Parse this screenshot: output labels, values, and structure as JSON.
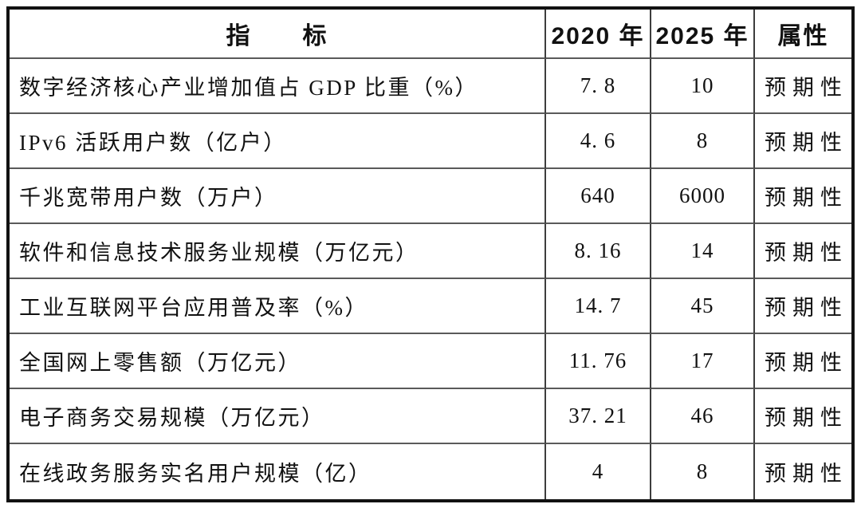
{
  "table": {
    "header": {
      "indicator": "指　　标",
      "y2020": "2020 年",
      "y2025": "2025 年",
      "attribute": "属性"
    },
    "rows": [
      {
        "indicator": "数字经济核心产业增加值占 GDP 比重（%）",
        "y2020": "7. 8",
        "y2025": "10",
        "attribute": "预期性"
      },
      {
        "indicator": "IPv6 活跃用户数（亿户）",
        "y2020": "4. 6",
        "y2025": "8",
        "attribute": "预期性"
      },
      {
        "indicator": "千兆宽带用户数（万户）",
        "y2020": "640",
        "y2025": "6000",
        "attribute": "预期性"
      },
      {
        "indicator": "软件和信息技术服务业规模（万亿元）",
        "y2020": "8. 16",
        "y2025": "14",
        "attribute": "预期性"
      },
      {
        "indicator": "工业互联网平台应用普及率（%）",
        "y2020": "14. 7",
        "y2025": "45",
        "attribute": "预期性"
      },
      {
        "indicator": "全国网上零售额（万亿元）",
        "y2020": "11. 76",
        "y2025": "17",
        "attribute": "预期性"
      },
      {
        "indicator": "电子商务交易规模（万亿元）",
        "y2020": "37. 21",
        "y2025": "46",
        "attribute": "预期性"
      },
      {
        "indicator": "在线政务服务实名用户规模（亿）",
        "y2020": "4",
        "y2025": "8",
        "attribute": "预期性"
      }
    ],
    "colors": {
      "outer_border": "#111111",
      "grid_line": "#3d3d3d",
      "text": "#111111",
      "background": "#ffffff"
    }
  }
}
